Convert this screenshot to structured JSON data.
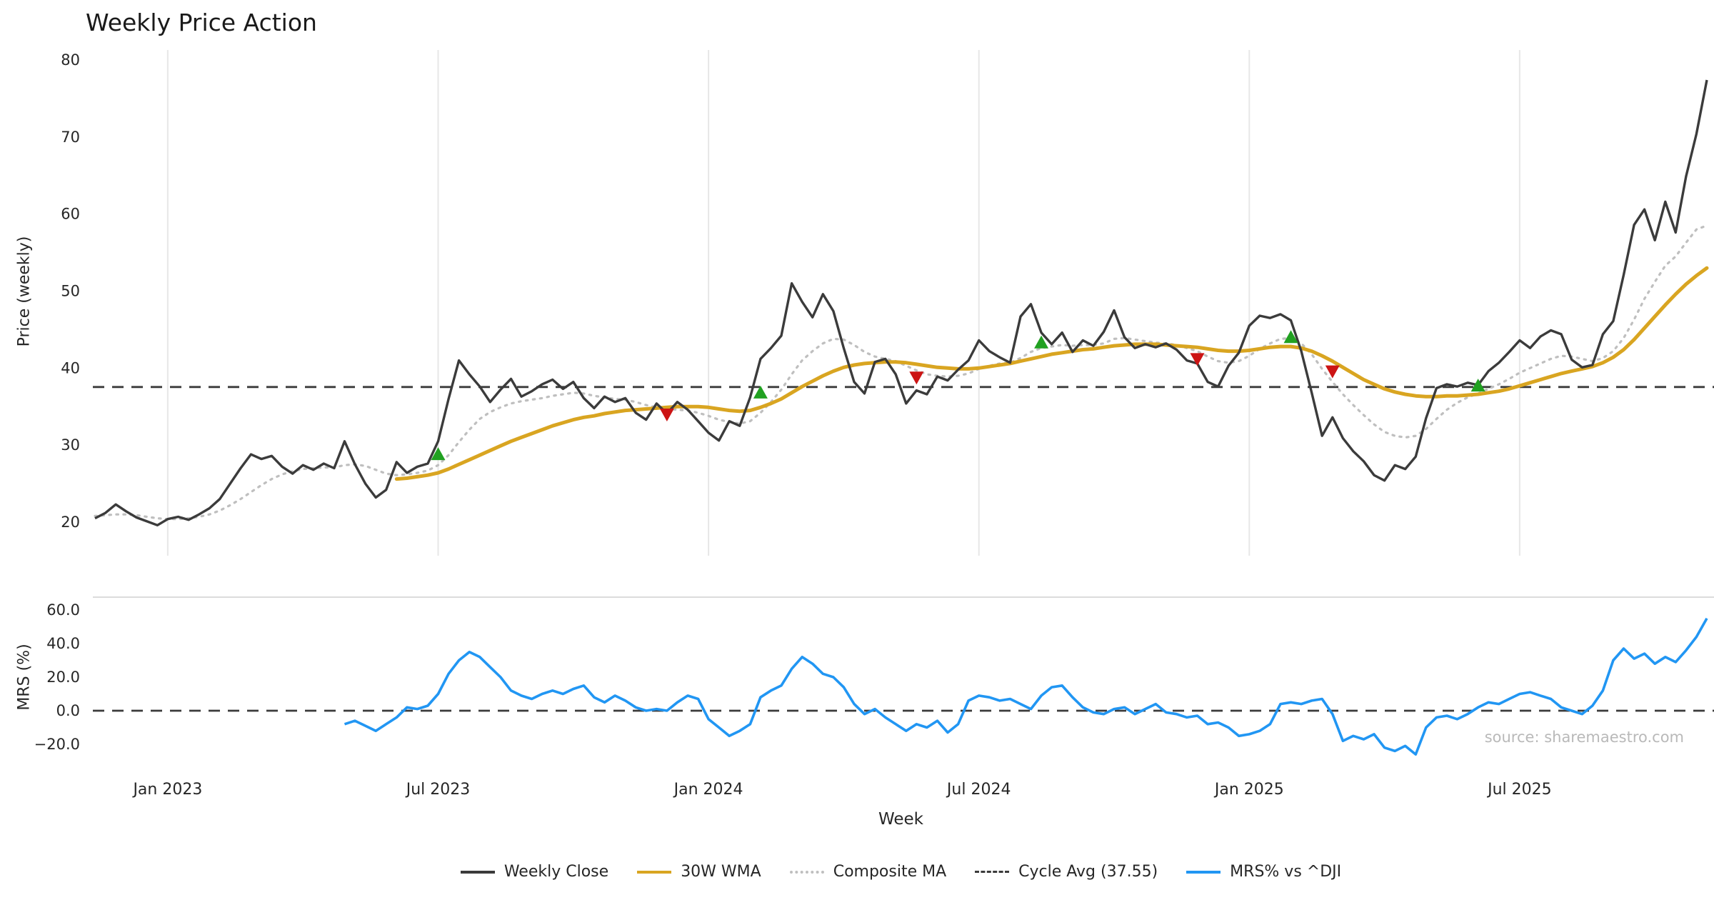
{
  "title": "Weekly Price Action",
  "watermark": "source: sharemaestro.com",
  "legend": [
    {
      "label": "Weekly Close",
      "color": "#3b3b3b",
      "style": "solid"
    },
    {
      "label": "30W WMA",
      "color": "#d9a521",
      "style": "solid"
    },
    {
      "label": "Composite MA",
      "color": "#bfbfbf",
      "style": "dotted"
    },
    {
      "label": "Cycle Avg (37.55)",
      "color": "#3b3b3b",
      "style": "dashed"
    },
    {
      "label": "MRS% vs ^DJI",
      "color": "#2196f3",
      "style": "solid"
    }
  ],
  "chart_data": {
    "type": "line",
    "title": "Weekly Price Action",
    "xlabel": "Week",
    "x_tick_labels": [
      "Jan 2023",
      "Jul 2023",
      "Jan 2024",
      "Jul 2024",
      "Jan 2025",
      "Jul 2025"
    ],
    "x_tick_week_indices": [
      7,
      33,
      59,
      85,
      111,
      137
    ],
    "panels": [
      {
        "name": "price",
        "ylabel": "Price (weekly)",
        "yticks": [
          20,
          30,
          40,
          50,
          60,
          70,
          80
        ],
        "ylim": [
          16,
          81
        ],
        "cycle_avg": 37.55,
        "series": [
          {
            "name": "Weekly Close",
            "color": "#3b3b3b",
            "style": "solid",
            "values": [
              20.5,
              21.2,
              22.3,
              21.4,
              20.6,
              20.1,
              19.6,
              20.4,
              20.7,
              20.3,
              21.0,
              21.8,
              23.0,
              25.0,
              27.0,
              28.8,
              28.2,
              28.6,
              27.2,
              26.3,
              27.4,
              26.8,
              27.6,
              27.0,
              30.5,
              27.5,
              25.0,
              23.2,
              24.2,
              27.8,
              26.4,
              27.2,
              27.6,
              30.5,
              36.0,
              41.0,
              39.2,
              37.6,
              35.6,
              37.2,
              38.6,
              36.3,
              37.0,
              37.9,
              38.5,
              37.3,
              38.2,
              36.1,
              34.8,
              36.3,
              35.6,
              36.1,
              34.2,
              33.3,
              35.4,
              34.1,
              35.6,
              34.6,
              33.1,
              31.6,
              30.6,
              33.1,
              32.5,
              36.2,
              41.2,
              42.6,
              44.2,
              51.0,
              48.6,
              46.6,
              49.6,
              47.4,
              42.6,
              38.2,
              36.7,
              40.8,
              41.2,
              39.2,
              35.4,
              37.1,
              36.6,
              38.9,
              38.4,
              39.8,
              41.0,
              43.6,
              42.2,
              41.4,
              40.7,
              46.7,
              48.3,
              44.6,
              43.1,
              44.6,
              42.1,
              43.6,
              42.9,
              44.7,
              47.5,
              44.0,
              42.6,
              43.1,
              42.7,
              43.2,
              42.4,
              41.0,
              40.6,
              38.2,
              37.6,
              40.3,
              42.0,
              45.5,
              46.8,
              46.5,
              47.0,
              46.2,
              42.2,
              36.8,
              31.2,
              33.6,
              30.9,
              29.2,
              27.9,
              26.1,
              25.4,
              27.4,
              26.9,
              28.5,
              33.5,
              37.4,
              37.9,
              37.6,
              38.1,
              37.8,
              39.6,
              40.7,
              42.1,
              43.6,
              42.6,
              44.1,
              44.9,
              44.4,
              41.1,
              40.1,
              40.4,
              44.4,
              46.1,
              52.1,
              58.6,
              60.6,
              56.6,
              61.6,
              57.6,
              64.9,
              70.4,
              77.4
            ]
          },
          {
            "name": "30W WMA",
            "color": "#d9a521",
            "style": "solid",
            "values": [
              null,
              null,
              null,
              null,
              null,
              null,
              null,
              null,
              null,
              null,
              null,
              null,
              null,
              null,
              null,
              null,
              null,
              null,
              null,
              null,
              null,
              null,
              null,
              null,
              null,
              null,
              null,
              null,
              null,
              25.6,
              25.7,
              25.9,
              26.1,
              26.4,
              26.9,
              27.5,
              28.1,
              28.7,
              29.3,
              29.9,
              30.5,
              31.0,
              31.5,
              32.0,
              32.5,
              32.9,
              33.3,
              33.6,
              33.8,
              34.1,
              34.3,
              34.5,
              34.6,
              34.7,
              34.8,
              34.9,
              35.0,
              35.0,
              35.0,
              34.9,
              34.7,
              34.5,
              34.4,
              34.5,
              34.9,
              35.4,
              36.0,
              36.8,
              37.6,
              38.3,
              39.0,
              39.6,
              40.1,
              40.4,
              40.6,
              40.7,
              40.8,
              40.8,
              40.7,
              40.5,
              40.3,
              40.1,
              40.0,
              39.9,
              39.9,
              40.0,
              40.2,
              40.4,
              40.6,
              40.9,
              41.2,
              41.5,
              41.8,
              42.0,
              42.2,
              42.4,
              42.5,
              42.7,
              42.9,
              43.0,
              43.1,
              43.1,
              43.1,
              43.0,
              42.9,
              42.8,
              42.7,
              42.5,
              42.3,
              42.2,
              42.2,
              42.3,
              42.5,
              42.7,
              42.8,
              42.8,
              42.6,
              42.2,
              41.6,
              40.9,
              40.1,
              39.3,
              38.5,
              37.9,
              37.3,
              36.9,
              36.6,
              36.4,
              36.3,
              36.3,
              36.4,
              36.4,
              36.5,
              36.6,
              36.8,
              37.0,
              37.3,
              37.7,
              38.1,
              38.5,
              38.9,
              39.3,
              39.6,
              39.9,
              40.2,
              40.7,
              41.4,
              42.4,
              43.7,
              45.2,
              46.7,
              48.2,
              49.6,
              50.9,
              52.0,
              53.0
            ]
          },
          {
            "name": "Composite MA",
            "color": "#bfbfbf",
            "style": "dotted",
            "values": [
              20.8,
              20.9,
              21.0,
              21.0,
              20.9,
              20.7,
              20.5,
              20.4,
              20.4,
              20.5,
              20.7,
              21.0,
              21.5,
              22.2,
              23.0,
              23.9,
              24.8,
              25.6,
              26.2,
              26.6,
              26.9,
              27.0,
              27.1,
              27.1,
              27.4,
              27.5,
              27.3,
              26.8,
              26.3,
              26.1,
              26.2,
              26.4,
              26.7,
              27.4,
              28.7,
              30.4,
              32.0,
              33.4,
              34.3,
              34.9,
              35.4,
              35.7,
              35.9,
              36.1,
              36.4,
              36.6,
              36.8,
              36.7,
              36.4,
              36.2,
              36.0,
              35.9,
              35.6,
              35.2,
              34.9,
              34.7,
              34.6,
              34.5,
              34.2,
              33.8,
              33.3,
              33.0,
              32.8,
              33.1,
              34.2,
              35.6,
              37.2,
              39.2,
              41.0,
              42.2,
              43.2,
              43.8,
              43.7,
              43.0,
              42.1,
              41.5,
              41.2,
              40.9,
              40.3,
              39.7,
              39.2,
              39.0,
              38.9,
              39.0,
              39.3,
              39.9,
              40.3,
              40.6,
              40.7,
              41.3,
              42.1,
              42.6,
              42.8,
              43.0,
              42.9,
              43.0,
              43.0,
              43.2,
              43.8,
              43.9,
              43.7,
              43.5,
              43.3,
              43.2,
              43.0,
              42.6,
              42.2,
              41.5,
              40.9,
              40.7,
              40.9,
              41.6,
              42.5,
              43.2,
              43.8,
              43.9,
              43.2,
              41.8,
              39.9,
              38.2,
              36.6,
              35.2,
              33.9,
              32.7,
              31.7,
              31.2,
              31.0,
              31.2,
              32.1,
              33.4,
              34.6,
              35.5,
              36.2,
              36.7,
              37.3,
              37.9,
              38.6,
              39.4,
              40.0,
              40.6,
              41.2,
              41.6,
              41.5,
              41.2,
              40.9,
              41.3,
              42.2,
              43.9,
              46.3,
              49.0,
              51.2,
              53.3,
              54.5,
              56.3,
              58.0,
              58.5
            ]
          },
          {
            "name": "Cycle Avg (37.55)",
            "color": "#3b3b3b",
            "style": "dashed",
            "value": 37.55
          }
        ],
        "buy_signals": [
          {
            "week": 33,
            "price": 28.8
          },
          {
            "week": 64,
            "price": 36.8
          },
          {
            "week": 91,
            "price": 43.3
          },
          {
            "week": 115,
            "price": 44.0
          },
          {
            "week": 133,
            "price": 37.7
          }
        ],
        "sell_signals": [
          {
            "week": 55,
            "price": 34.0
          },
          {
            "week": 79,
            "price": 38.8
          },
          {
            "week": 106,
            "price": 41.2
          },
          {
            "week": 119,
            "price": 39.6
          }
        ]
      },
      {
        "name": "mrs",
        "ylabel": "MRS (%)",
        "yticks": [
          -20,
          0,
          20,
          40,
          60
        ],
        "ytick_labels": [
          "−20.0",
          "0.0",
          "20.0",
          "40.0",
          "60.0"
        ],
        "ylim": [
          -30,
          65
        ],
        "zero_line": 0,
        "series": [
          {
            "name": "MRS% vs ^DJI",
            "color": "#2196f3",
            "style": "solid",
            "values": [
              null,
              null,
              null,
              null,
              null,
              null,
              null,
              null,
              null,
              null,
              null,
              null,
              null,
              null,
              null,
              null,
              null,
              null,
              null,
              null,
              null,
              null,
              null,
              null,
              -8,
              -6,
              -9,
              -12,
              -8,
              -4,
              2,
              1,
              3,
              10,
              22,
              30,
              35,
              32,
              26,
              20,
              12,
              9,
              7,
              10,
              12,
              10,
              13,
              15,
              8,
              5,
              9,
              6,
              2,
              0,
              1,
              0,
              5,
              9,
              7,
              -5,
              -10,
              -15,
              -12,
              -8,
              8,
              12,
              15,
              25,
              32,
              28,
              22,
              20,
              14,
              4,
              -2,
              1,
              -4,
              -8,
              -12,
              -8,
              -10,
              -6,
              -13,
              -8,
              6,
              9,
              8,
              6,
              7,
              4,
              1,
              9,
              14,
              15,
              8,
              2,
              -1,
              -2,
              1,
              2,
              -2,
              1,
              4,
              -1,
              -2,
              -4,
              -3,
              -8,
              -7,
              -10,
              -15,
              -14,
              -12,
              -8,
              4,
              5,
              4,
              6,
              7,
              -2,
              -18,
              -15,
              -17,
              -14,
              -22,
              -24,
              -21,
              -26,
              -10,
              -4,
              -3,
              -5,
              -2,
              2,
              5,
              4,
              7,
              10,
              11,
              9,
              7,
              2,
              0,
              -2,
              3,
              12,
              30,
              37,
              31,
              34,
              28,
              32,
              29,
              36,
              44,
              55
            ]
          }
        ]
      }
    ]
  }
}
